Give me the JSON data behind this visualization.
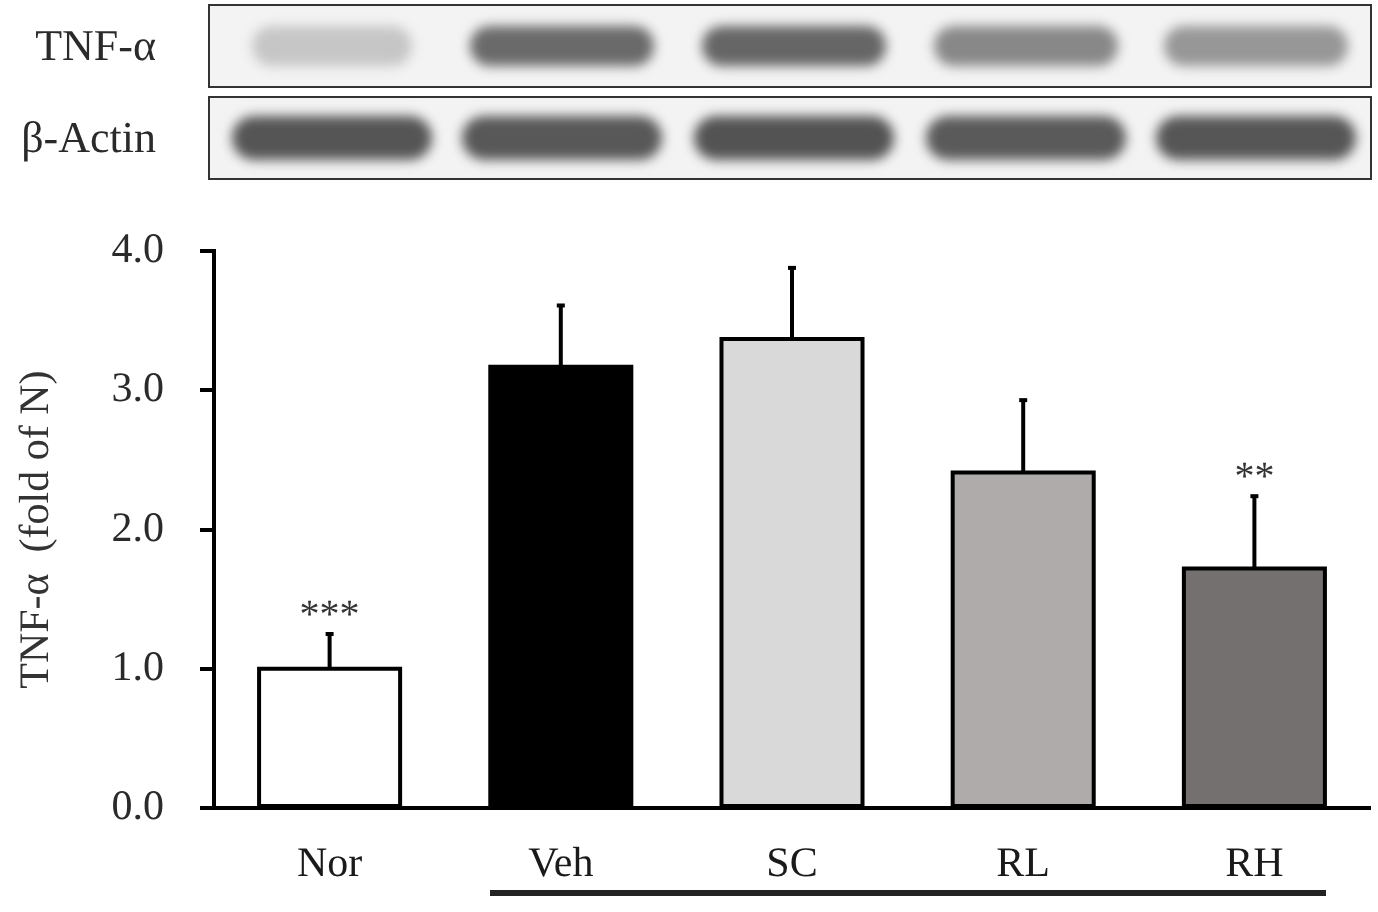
{
  "chart_data": {
    "type": "bar",
    "categories": [
      "Nor",
      "Veh",
      "SC",
      "RL",
      "RH"
    ],
    "values": [
      1.0,
      3.17,
      3.37,
      2.41,
      1.72
    ],
    "colors": [
      "#ffffff",
      "#000000",
      "#d9d9d9",
      "#b0abab",
      "#747070"
    ],
    "errors": [
      [
        1.0,
        1.25
      ],
      [
        3.17,
        3.61
      ],
      [
        3.37,
        3.88
      ],
      [
        2.41,
        2.93
      ],
      [
        1.72,
        2.24
      ]
    ],
    "ylabel": "TNF-α  (fold of N)",
    "ylim": [
      0,
      4
    ],
    "yticks": [
      {
        "value": 0,
        "label": "0.0"
      },
      {
        "value": 1,
        "label": "1.0"
      },
      {
        "value": 2,
        "label": "2.0"
      },
      {
        "value": 3,
        "label": "3.0"
      },
      {
        "value": 4,
        "label": "4.0"
      }
    ],
    "grid": false,
    "legend": false,
    "annotations": [
      "TNF-α",
      "β-Actin",
      "***",
      "**"
    ]
  }
}
